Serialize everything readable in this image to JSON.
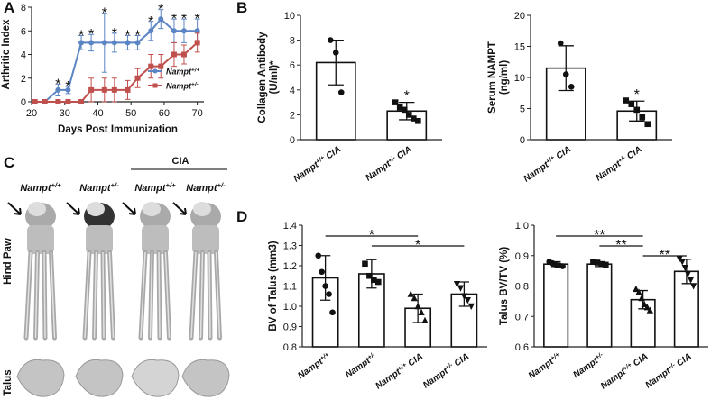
{
  "chart_data": [
    {
      "type": "line",
      "panel": "A",
      "xlabel": "Days Post Immunization",
      "ylabel": [
        "Arthritic Index"
      ],
      "x": [
        21,
        24,
        28,
        31,
        35,
        38,
        42,
        45,
        49,
        52,
        56,
        59,
        63,
        66,
        70
      ],
      "series": [
        {
          "name": "Nampt+/+",
          "color": "#5b84c4",
          "marker": "circle",
          "values": [
            0,
            0,
            1,
            1,
            5,
            5,
            5,
            5,
            5,
            5,
            6,
            7,
            6,
            6,
            6
          ],
          "errors": [
            0,
            0,
            0.5,
            0.3,
            0.6,
            0.7,
            2.5,
            0.8,
            0.6,
            0.6,
            0.8,
            0.8,
            1,
            1,
            1
          ]
        },
        {
          "name": "Nampt+/-",
          "color": "#c0504d",
          "marker": "square",
          "values": [
            0,
            0,
            0,
            0,
            0,
            1,
            1,
            1,
            1,
            2,
            3,
            3,
            4,
            4,
            5
          ],
          "errors": [
            0,
            0,
            0,
            0,
            0,
            1,
            1,
            1,
            0.8,
            0.8,
            1,
            1,
            1,
            0.8,
            0.8
          ]
        }
      ],
      "annotations": [
        {
          "x": 28,
          "label": "*"
        },
        {
          "x": 31,
          "label": "*"
        },
        {
          "x": 35,
          "label": "*"
        },
        {
          "x": 38,
          "label": "*"
        },
        {
          "x": 42,
          "label": "*"
        },
        {
          "x": 45,
          "label": "*"
        },
        {
          "x": 49,
          "label": "*"
        },
        {
          "x": 52,
          "label": "*"
        },
        {
          "x": 56,
          "label": "*"
        },
        {
          "x": 59,
          "label": "*"
        },
        {
          "x": 63,
          "label": "*"
        },
        {
          "x": 66,
          "label": "*"
        },
        {
          "x": 70,
          "label": "*"
        }
      ],
      "xlim": [
        20,
        72
      ],
      "xticks": [
        20,
        30,
        40,
        50,
        60,
        70
      ],
      "ylim": [
        0,
        8
      ],
      "yticks": [
        0,
        2,
        4,
        6,
        8
      ],
      "legend": "lower right"
    },
    {
      "type": "bar",
      "panel": "B",
      "ylabel": [
        "Collagen Antibody",
        "(U/ml)*"
      ],
      "categories": [
        "Nampt+/+ CIA",
        "Nampt+/- CIA"
      ],
      "values": [
        6.2,
        2.3
      ],
      "errors": [
        1.8,
        0.7
      ],
      "points": [
        [
          8.0,
          7.0,
          3.8
        ],
        [
          3.0,
          2.6,
          2.4,
          2.0,
          1.7,
          1.5
        ]
      ],
      "markers": [
        "circle",
        "square"
      ],
      "annotations": [
        {
          "category": 1,
          "label": "*"
        }
      ],
      "ylim": [
        0,
        10
      ],
      "yticks": [
        0,
        2,
        4,
        6,
        8,
        10
      ]
    },
    {
      "type": "bar",
      "ylabel": [
        "Serum NAMPT",
        "(ng/ml)"
      ],
      "categories": [
        "Nampt+/+ CIA",
        "Nampt+/- CIA"
      ],
      "values": [
        11.5,
        4.6
      ],
      "errors": [
        3.6,
        1.6
      ],
      "points": [
        [
          15.5,
          10.5,
          8.5
        ],
        [
          6.3,
          5.7,
          4.8,
          3.6,
          2.5
        ]
      ],
      "markers": [
        "circle",
        "square"
      ],
      "annotations": [
        {
          "category": 1,
          "label": "*"
        }
      ],
      "ylim": [
        0,
        20
      ],
      "yticks": [
        0,
        5,
        10,
        15,
        20
      ]
    },
    {
      "type": "bar",
      "panel": "D",
      "ylabel": [
        "BV of Talus (mm3)"
      ],
      "categories": [
        "Nampt+/+",
        "Nampt+/-",
        "Nampt+/+ CIA",
        "Nampt+/- CIA"
      ],
      "values": [
        1.14,
        1.16,
        0.99,
        1.06
      ],
      "errors": [
        0.11,
        0.07,
        0.07,
        0.06
      ],
      "points": [
        [
          1.25,
          1.17,
          1.1,
          1.06,
          0.97
        ],
        [
          1.21,
          1.15,
          1.13,
          1.12
        ],
        [
          1.06,
          1.04,
          1.0,
          0.97,
          0.93
        ],
        [
          1.11,
          1.09,
          1.05,
          1.03,
          1.0
        ]
      ],
      "markers": [
        "circle",
        "square",
        "triangle-up",
        "triangle-down"
      ],
      "brackets": [
        {
          "from": 0,
          "to": 2,
          "label": "*"
        },
        {
          "from": 1,
          "to": 3,
          "label": "*"
        }
      ],
      "ylim": [
        0.8,
        1.4
      ],
      "yticks": [
        0.8,
        0.9,
        {
          "value": 1.0,
          "label": "1.0"
        },
        1.1,
        1.2,
        1.3,
        1.4
      ]
    },
    {
      "type": "bar",
      "ylabel": [
        "Talus BV/TV (%)"
      ],
      "categories": [
        "Nampt+/+",
        "Nampt+/-",
        "Nampt+/+ CIA",
        "Nampt+/- CIA"
      ],
      "values": [
        0.872,
        0.872,
        0.755,
        0.848
      ],
      "errors": [
        0.008,
        0.008,
        0.03,
        0.04
      ],
      "points": [
        [
          0.88,
          0.875,
          0.87,
          0.868,
          0.865
        ],
        [
          0.88,
          0.877,
          0.872,
          0.87
        ],
        [
          0.79,
          0.78,
          0.76,
          0.74,
          0.73,
          0.72
        ],
        [
          0.89,
          0.88,
          0.86,
          0.84,
          0.82,
          0.8
        ]
      ],
      "markers": [
        "circle",
        "square",
        "triangle-up",
        "triangle-down"
      ],
      "brackets": [
        {
          "from": 0,
          "to": 2,
          "label": "**"
        },
        {
          "from": 1,
          "to": 2,
          "label": "**"
        },
        {
          "from": 2,
          "to": 3,
          "label": "**"
        }
      ],
      "ylim": [
        0.6,
        1.0
      ],
      "yticks": [
        0.6,
        0.7,
        0.8,
        0.9,
        {
          "value": 1.0,
          "label": "1.0"
        }
      ]
    }
  ],
  "panel_c": {
    "letter": "C",
    "columns": [
      "Nampt+/+",
      "Nampt+/-",
      "Nampt+/+",
      "Nampt+/-"
    ],
    "group_label": "CIA",
    "rows": [
      "Hind Paw",
      "Talus"
    ]
  }
}
